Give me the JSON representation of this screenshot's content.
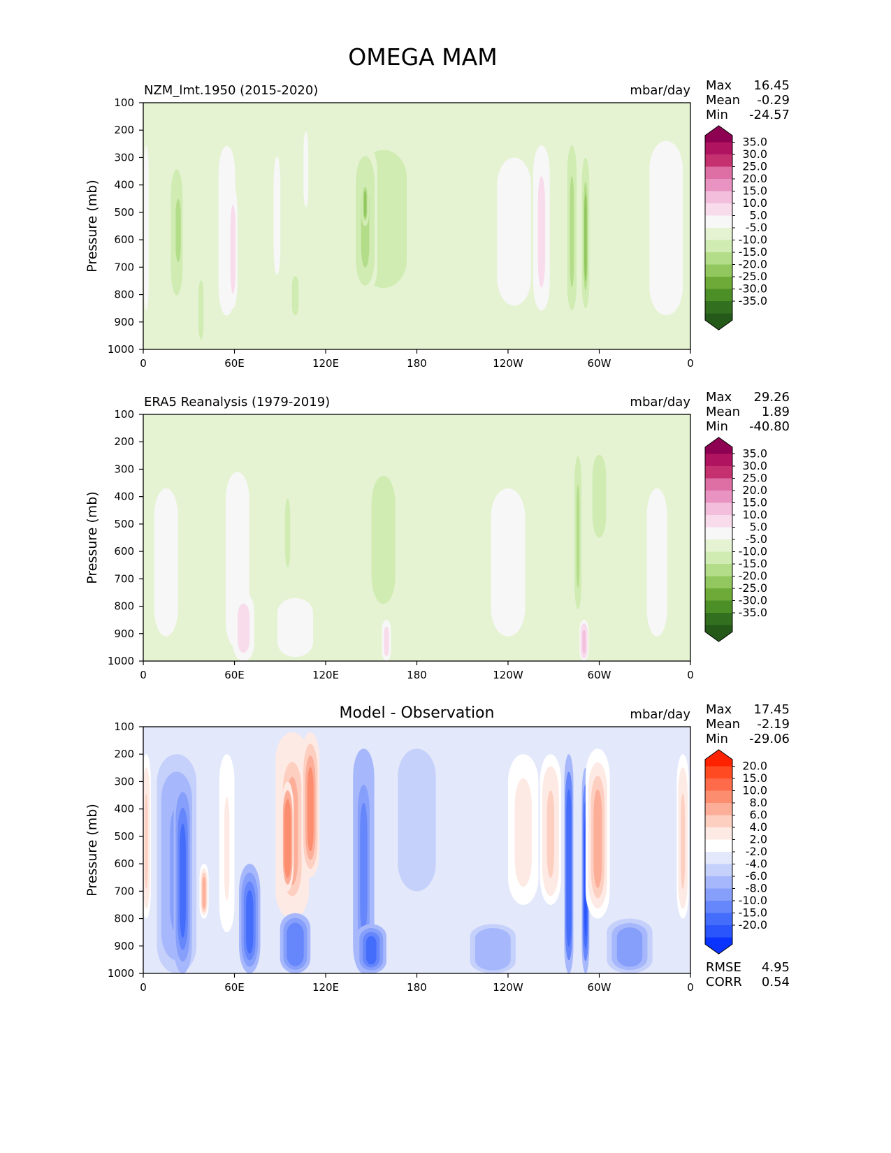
{
  "title": "OMEGA MAM",
  "chart_data": [
    {
      "type": "heatmap",
      "panel_title": "NZM_lmt.1950 (2015-2020)",
      "center_title": "",
      "units": "mbar/day",
      "ylabel": "Pressure (mb)",
      "xticks": [
        "0",
        "60E",
        "120E",
        "180",
        "120W",
        "60W",
        "0"
      ],
      "xlim": [
        0,
        360
      ],
      "yticks": [
        "100",
        "200",
        "300",
        "400",
        "500",
        "600",
        "700",
        "800",
        "900",
        "1000"
      ],
      "ylim": [
        100,
        1000
      ],
      "stats": [
        {
          "label": "Max",
          "value": "16.45"
        },
        {
          "label": "Mean",
          "value": "-0.29"
        },
        {
          "label": "Min",
          "value": "-24.57"
        }
      ],
      "colorbar": {
        "labels": [
          "35.0",
          "30.0",
          "25.0",
          "20.0",
          "15.0",
          "10.0",
          "5.0",
          "-5.0",
          "-10.0",
          "-15.0",
          "-20.0",
          "-25.0",
          "-30.0",
          "-35.0"
        ],
        "colors": [
          "#8e0152",
          "#b0135f",
          "#c5306f",
          "#dd6fa5",
          "#e893c1",
          "#f2bedc",
          "#f8dcec",
          "#f7f7f7",
          "#e5f3d3",
          "#d0ecb3",
          "#b4dd8a",
          "#92c75f",
          "#6eaa38",
          "#4d8f27",
          "#326f1f",
          "#24591a"
        ],
        "extend": "both"
      },
      "features": [
        {
          "lon": 2,
          "p_top": 200,
          "p_bot": 900,
          "width": 4,
          "value": 8
        },
        {
          "lon": 22,
          "p_top": 240,
          "p_bot": 880,
          "width": 14,
          "value": -7
        },
        {
          "lon": 23,
          "p_top": 400,
          "p_bot": 720,
          "width": 6,
          "value": -14
        },
        {
          "lon": 38,
          "p_top": 700,
          "p_bot": 1000,
          "width": 6,
          "value": -6
        },
        {
          "lon": 55,
          "p_top": 200,
          "p_bot": 920,
          "width": 14,
          "value": 8
        },
        {
          "lon": 59,
          "p_top": 400,
          "p_bot": 850,
          "width": 6,
          "value": 13
        },
        {
          "lon": 88,
          "p_top": 200,
          "p_bot": 800,
          "width": 8,
          "value": 7
        },
        {
          "lon": 100,
          "p_top": 700,
          "p_bot": 900,
          "width": 8,
          "value": -6
        },
        {
          "lon": 107,
          "p_top": 180,
          "p_bot": 500,
          "width": 4,
          "value": 8
        },
        {
          "lon": 158,
          "p_top": 160,
          "p_bot": 860,
          "width": 55,
          "value": -7
        },
        {
          "lon": 146,
          "p_top": 250,
          "p_bot": 800,
          "width": 16,
          "value": -11
        },
        {
          "lon": 146,
          "p_top": 380,
          "p_bot": 550,
          "width": 5,
          "value": -16
        },
        {
          "lon": 244,
          "p_top": 180,
          "p_bot": 930,
          "width": 40,
          "value": 7
        },
        {
          "lon": 262,
          "p_top": 200,
          "p_bot": 900,
          "width": 14,
          "value": 12
        },
        {
          "lon": 282,
          "p_top": 200,
          "p_bot": 900,
          "width": 8,
          "value": -12
        },
        {
          "lon": 291,
          "p_top": 300,
          "p_bot": 850,
          "width": 5,
          "value": -16
        },
        {
          "lon": 344,
          "p_top": 180,
          "p_bot": 920,
          "width": 28,
          "value": 8
        }
      ]
    },
    {
      "type": "heatmap",
      "panel_title": "ERA5 Reanalysis (1979-2019)",
      "center_title": "",
      "units": "mbar/day",
      "ylabel": "Pressure (mb)",
      "xticks": [
        "0",
        "60E",
        "120E",
        "180",
        "120W",
        "60W",
        "0"
      ],
      "xlim": [
        0,
        360
      ],
      "yticks": [
        "100",
        "200",
        "300",
        "400",
        "500",
        "600",
        "700",
        "800",
        "900",
        "1000"
      ],
      "ylim": [
        100,
        1000
      ],
      "stats": [
        {
          "label": "Max",
          "value": "29.26"
        },
        {
          "label": "Mean",
          "value": "1.89"
        },
        {
          "label": "Min",
          "value": "-40.80"
        }
      ],
      "colorbar": {
        "labels": [
          "35.0",
          "30.0",
          "25.0",
          "20.0",
          "15.0",
          "10.0",
          "5.0",
          "-5.0",
          "-10.0",
          "-15.0",
          "-20.0",
          "-25.0",
          "-30.0",
          "-35.0"
        ],
        "colors": [
          "#8e0152",
          "#b0135f",
          "#c5306f",
          "#dd6fa5",
          "#e893c1",
          "#f2bedc",
          "#f8dcec",
          "#f7f7f7",
          "#e5f3d3",
          "#d0ecb3",
          "#b4dd8a",
          "#92c75f",
          "#6eaa38",
          "#4d8f27",
          "#326f1f",
          "#24591a"
        ],
        "extend": "both"
      },
      "features": [
        {
          "lon": 15,
          "p_top": 250,
          "p_bot": 1000,
          "width": 28,
          "value": 6
        },
        {
          "lon": 62,
          "p_top": 250,
          "p_bot": 1000,
          "width": 20,
          "value": 8
        },
        {
          "lon": 66,
          "p_top": 750,
          "p_bot": 1000,
          "width": 14,
          "value": 14
        },
        {
          "lon": 100,
          "p_top": 750,
          "p_bot": 1000,
          "width": 30,
          "value": 9
        },
        {
          "lon": 95,
          "p_top": 350,
          "p_bot": 700,
          "width": 6,
          "value": -6
        },
        {
          "lon": 158,
          "p_top": 220,
          "p_bot": 870,
          "width": 28,
          "value": -7
        },
        {
          "lon": 160,
          "p_top": 850,
          "p_bot": 1000,
          "width": 6,
          "value": 14
        },
        {
          "lon": 240,
          "p_top": 250,
          "p_bot": 1000,
          "width": 40,
          "value": 6
        },
        {
          "lon": 286,
          "p_top": 200,
          "p_bot": 850,
          "width": 6,
          "value": -12
        },
        {
          "lon": 290,
          "p_top": 850,
          "p_bot": 1000,
          "width": 6,
          "value": 18
        },
        {
          "lon": 300,
          "p_top": 180,
          "p_bot": 600,
          "width": 16,
          "value": -6
        },
        {
          "lon": 338,
          "p_top": 250,
          "p_bot": 1000,
          "width": 24,
          "value": 7
        }
      ]
    },
    {
      "type": "heatmap",
      "panel_title": "",
      "center_title": "Model - Observation",
      "units": "mbar/day",
      "ylabel": "Pressure (mb)",
      "xticks": [
        "0",
        "60E",
        "120E",
        "180",
        "120W",
        "60W",
        "0"
      ],
      "xlim": [
        0,
        360
      ],
      "yticks": [
        "100",
        "200",
        "300",
        "400",
        "500",
        "600",
        "700",
        "800",
        "900",
        "1000"
      ],
      "ylim": [
        100,
        1000
      ],
      "stats": [
        {
          "label": "Max",
          "value": "17.45"
        },
        {
          "label": "Mean",
          "value": "-2.19"
        },
        {
          "label": "Min",
          "value": "-29.06"
        }
      ],
      "extra_stats": [
        {
          "label": "RMSE",
          "value": "4.95"
        },
        {
          "label": "CORR",
          "value": "0.54"
        }
      ],
      "colorbar": {
        "labels": [
          "20.0",
          "15.0",
          "10.0",
          "8.0",
          "6.0",
          "4.0",
          "2.0",
          "-2.0",
          "-4.0",
          "-6.0",
          "-8.0",
          "-10.0",
          "-15.0",
          "-20.0"
        ],
        "colors": [
          "#ff2200",
          "#ff4a22",
          "#fd6b4a",
          "#fc8d6f",
          "#fcae98",
          "#fdcfc1",
          "#feeae4",
          "#ffffff",
          "#e3e8fb",
          "#c5d0fb",
          "#a6b8fb",
          "#869ffb",
          "#6686fb",
          "#456dfb",
          "#2a55fc",
          "#0a33fd"
        ],
        "extend": "both"
      },
      "features": [
        {
          "lon": 2,
          "p_top": 200,
          "p_bot": 800,
          "width": 6,
          "value": 6
        },
        {
          "lon": 22,
          "p_top": 200,
          "p_bot": 1000,
          "width": 26,
          "value": -7
        },
        {
          "lon": 26,
          "p_top": 280,
          "p_bot": 1000,
          "width": 12,
          "value": -12
        },
        {
          "lon": 40,
          "p_top": 600,
          "p_bot": 800,
          "width": 6,
          "value": 8
        },
        {
          "lon": 55,
          "p_top": 200,
          "p_bot": 850,
          "width": 10,
          "value": 4
        },
        {
          "lon": 70,
          "p_top": 600,
          "p_bot": 1000,
          "width": 14,
          "value": -11
        },
        {
          "lon": 98,
          "p_top": 120,
          "p_bot": 800,
          "width": 22,
          "value": 9
        },
        {
          "lon": 110,
          "p_top": 120,
          "p_bot": 650,
          "width": 12,
          "value": 11
        },
        {
          "lon": 95,
          "p_top": 300,
          "p_bot": 700,
          "width": 8,
          "value": 14
        },
        {
          "lon": 100,
          "p_top": 780,
          "p_bot": 1000,
          "width": 20,
          "value": -10
        },
        {
          "lon": 145,
          "p_top": 180,
          "p_bot": 1000,
          "width": 14,
          "value": -9
        },
        {
          "lon": 150,
          "p_top": 820,
          "p_bot": 1000,
          "width": 20,
          "value": -12
        },
        {
          "lon": 180,
          "p_top": 180,
          "p_bot": 700,
          "width": 25,
          "value": -3
        },
        {
          "lon": 230,
          "p_top": 820,
          "p_bot": 1000,
          "width": 30,
          "value": -6
        },
        {
          "lon": 250,
          "p_top": 200,
          "p_bot": 750,
          "width": 20,
          "value": 5
        },
        {
          "lon": 268,
          "p_top": 200,
          "p_bot": 750,
          "width": 14,
          "value": 7
        },
        {
          "lon": 280,
          "p_top": 200,
          "p_bot": 1000,
          "width": 6,
          "value": -14
        },
        {
          "lon": 291,
          "p_top": 250,
          "p_bot": 1000,
          "width": 5,
          "value": -16
        },
        {
          "lon": 299,
          "p_top": 180,
          "p_bot": 800,
          "width": 16,
          "value": 8
        },
        {
          "lon": 320,
          "p_top": 800,
          "p_bot": 1000,
          "width": 30,
          "value": -8
        },
        {
          "lon": 355,
          "p_top": 200,
          "p_bot": 800,
          "width": 8,
          "value": 6
        }
      ]
    }
  ]
}
